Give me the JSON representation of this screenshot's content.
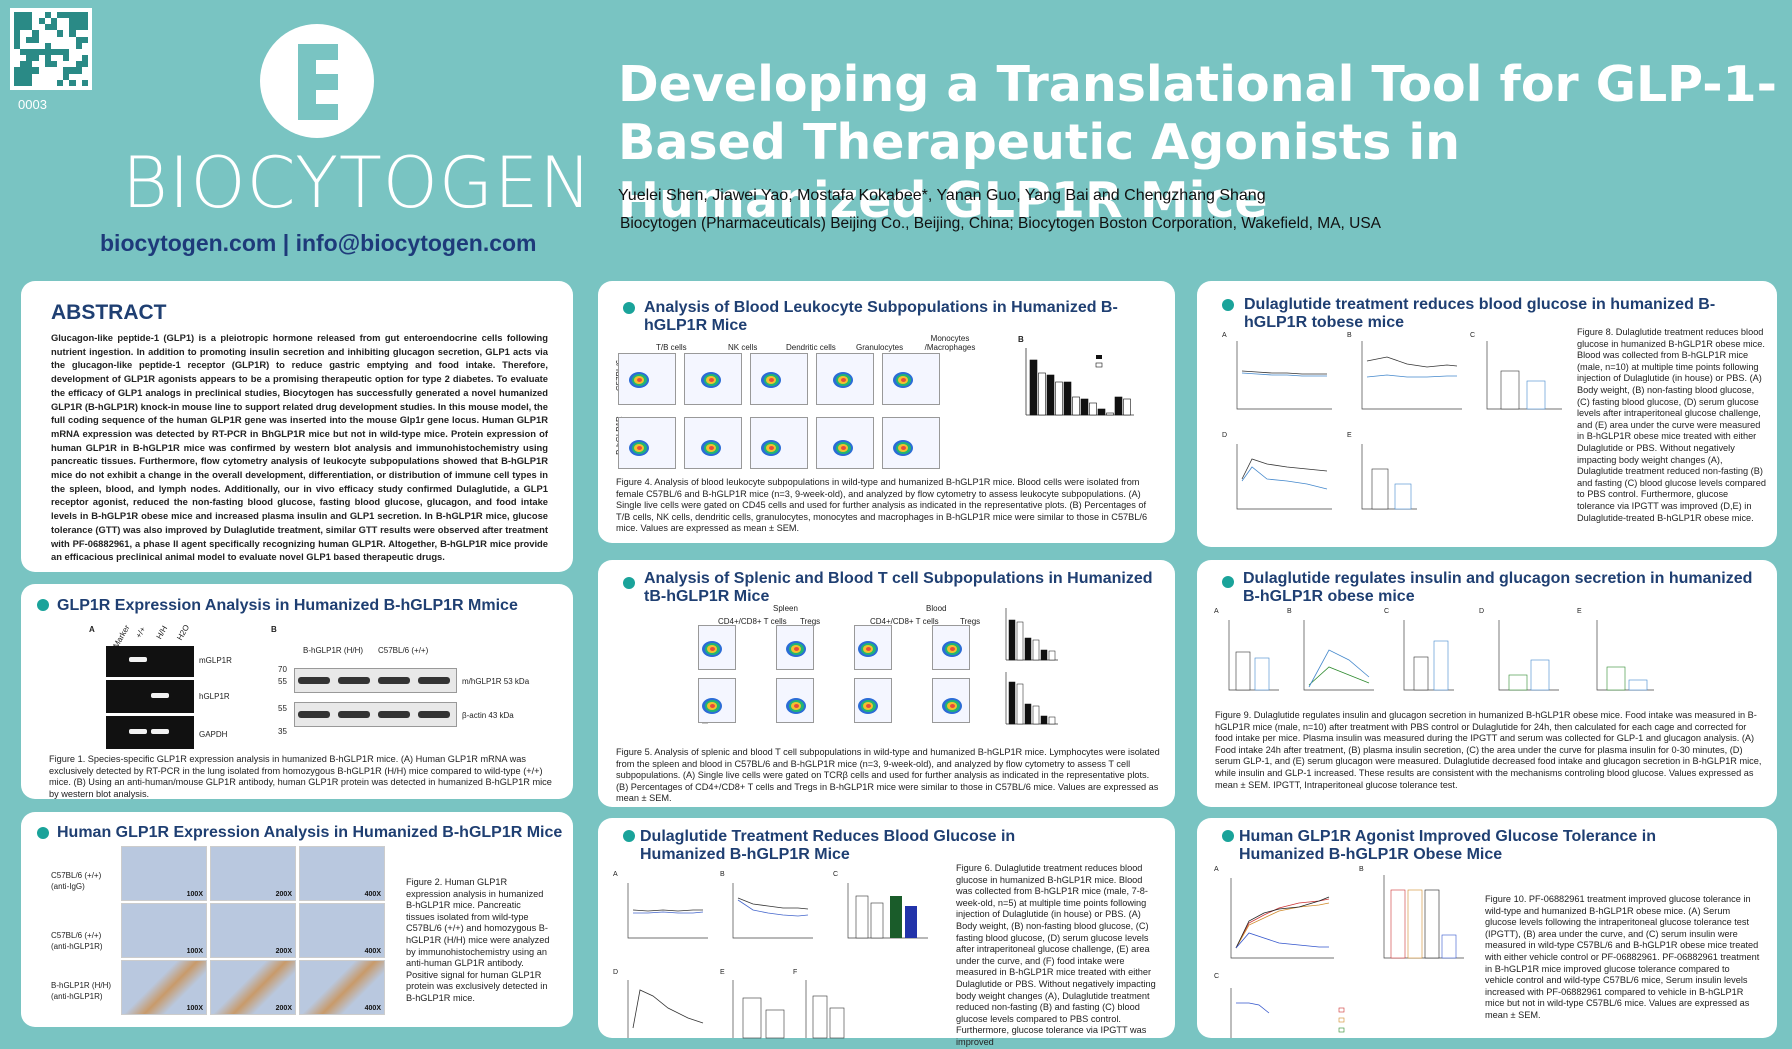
{
  "header": {
    "qr_id": "0003",
    "logo_text": "BIOCYTOGEN",
    "contact": "biocytogen.com  |  info@biocytogen.com",
    "title": "Developing a Translational Tool for GLP-1-Based Therapeutic Agonists in Humanized GLP1R Mice",
    "authors": "Yuelei Shen, Jiawei Yao, Mostafa Kokabee*, Yanan Guo, Yang Bai and Chengzhang Shang",
    "affiliation": "Biocytogen (Pharmaceuticals) Beijing Co., Beijing, China; Biocytogen Boston Corporation, Wakefield, MA, USA"
  },
  "colors": {
    "background": "#79c4c2",
    "title": "#ffffff",
    "heading": "#1f3f72",
    "bullet": "#1aa39a"
  },
  "abstract": {
    "heading": "ABSTRACT",
    "body": "Glucagon-like peptide-1 (GLP1) is a pleiotropic hormone released from gut enteroendocrine cells following nutrient ingestion. In addition to promoting insulin secretion and inhibiting glucagon secretion, GLP1 acts via the glucagon-like peptide-1 receptor (GLP1R) to reduce gastric emptying and food intake. Therefore, development of GLP1R agonists appears to be a promising therapeutic option for type 2 diabetes. To evaluate the efficacy of GLP1 analogs in preclinical studies, Biocytogen has successfully generated a novel humanized GLP1R (B-hGLP1R) knock-in mouse line to support related drug development studies. In this mouse model, the full coding sequence of the human GLP1R gene was inserted into the mouse Glp1r gene locus. Human GLP1R mRNA expression was detected by RT-PCR in BhGLP1R mice but not in wild-type mice. Protein expression of human GLP1R in B-hGLP1R mice was confirmed by western blot analysis and immunohistochemistry using pancreatic tissues. Furthermore, flow cytometry analysis of leukocyte subpopulations showed that B-hGLP1R mice do not exhibit a change in the overall development, differentiation, or distribution of immune cell types in the spleen, blood, and lymph nodes. Additionally, our in vivo efficacy study confirmed Dulaglutide, a GLP1 receptor agonist, reduced the non-fasting blood glucose, fasting blood glucose, glucagon, and food intake levels in B-hGLP1R obese mice and increased plasma insulin and GLP1 secretion. In B-hGLP1R mice, glucose tolerance (GTT) was also improved by Dulaglutide treatment, similar GTT results were observed after treatment with PF-06882961, a phase II agent specifically recognizing human GLP1R. Altogether, B-hGLP1R mice provide an efficacious preclinical animal model to evaluate novel GLP1 based therapeutic drugs."
  },
  "panel_expr": {
    "title": "GLP1R Expression Analysis in Humanized B-hGLP1R Mmice",
    "gel_lanes": [
      "Marker",
      "+/+",
      "H/H",
      "H2O"
    ],
    "gel_rows": [
      "mGLP1R",
      "hGLP1R",
      "GAPDH"
    ],
    "wb_cols": [
      "B-hGLP1R (H/H)",
      "C57BL/6 (+/+)"
    ],
    "wb_rows": [
      "m/hGLP1R   53 kDa",
      "β-actin   43 kDa"
    ],
    "wb_markers": [
      "70",
      "55",
      "55",
      "35"
    ],
    "caption": "Figure 1. Species-specific GLP1R expression analysis in humanized B-hGLP1R mice. (A) Human GLP1R mRNA was exclusively detected by RT-PCR in the lung isolated from homozygous B-hGLP1R (H/H) mice compared to wild-type (+/+) mice. (B) Using an anti-human/mouse GLP1R antibody, human GLP1R protein was detected in humanized B-hGLP1R mice by western blot analysis."
  },
  "panel_ihc": {
    "title": "Human GLP1R Expression Analysis in Humanized B-hGLP1R Mice",
    "rows": [
      "C57BL/6 (+/+) (anti-IgG)",
      "C57BL/6 (+/+) (anti-hGLP1R)",
      "B-hGLP1R (H/H) (anti-hGLP1R)"
    ],
    "mags": [
      "100X",
      "200X",
      "400X"
    ],
    "caption": "Figure 2. Human GLP1R expression analysis in humanized B-hGLP1R mice. Pancreatic tissues isolated from wild-type C57BL/6 (+/+) and homozygous B-hGLP1R (H/H) mice were analyzed by immunohistochemistry using an anti-human GLP1R antibody. Positive signal for human GLP1R protein was exclusively detected in B-hGLP1R mice."
  },
  "panel_leuko": {
    "title": "Analysis of Blood Leukocyte Subpopulations in Humanized B-hGLP1R Mice",
    "gates": [
      "T/B cells",
      "NK cells",
      "Dendritic cells",
      "Granulocytes",
      "Monocytes /Macrophages"
    ],
    "strains": [
      "C57BL/6",
      "B-hGLP1R"
    ],
    "caption": "Figure 4. Analysis of blood leukocyte subpopulations in wild-type and humanized B-hGLP1R mice. Blood cells were isolated from female C57BL/6 and B-hGLP1R mice (n=3, 9-week-old), and analyzed by flow cytometry to assess leukocyte subpopulations. (A) Single live cells were gated on CD45 cells and used for further analysis as indicated in the representative plots. (B) Percentages of T/B cells, NK cells, dendritic cells, granulocytes, monocytes and macrophages in B-hGLP1R mice were similar to those in C57BL/6 mice. Values are expressed as mean ± SEM."
  },
  "panel_spleen": {
    "title": "Analysis of Splenic and Blood T cell Subpopulations in Humanized tB-hGLP1R Mice",
    "tissues": [
      "Spleen",
      "Blood"
    ],
    "gates": [
      "CD4+/CD8+ T cells",
      "Tregs"
    ],
    "caption": "Figure 5. Analysis of splenic and blood T cell subpopulations in wild-type and humanized B-hGLP1R mice. Lymphocytes were isolated from the spleen and blood in C57BL/6 and B-hGLP1R mice (n=3, 9-week-old), and analyzed by flow cytometry to assess T cell subpopulations. (A) Single live cells were gated on TCRβ cells and used for further analysis as indicated in the representative plots. (B) Percentages of CD4+/CD8+ T cells and Tregs in B-hGLP1R mice were similar to those in C57BL/6 mice. Values are expressed as mean ± SEM."
  },
  "panel_dula1": {
    "title": "Dulaglutide Treatment Reduces Blood Glucose in Humanized B-hGLP1R Mice",
    "caption": "Figure 6. Dulaglutide treatment reduces blood glucose in humanized B-hGLP1R mice. Blood was collected from B-hGLP1R mice (male, 7-8-week-old, n=5) at multiple time points following injection of Dulaglutide (in house) or PBS. (A) Body weight, (B) non-fasting blood glucose, (C) fasting blood glucose, (D) serum glucose levels after intraperitoneal glucose challenge, (E) area under the curve, and (F) food intake were measured in B-hGLP1R mice treated with either Dulaglutide or PBS. Without negatively impacting body weight changes (A), Dulaglutide treatment reduced non-fasting (B) and fasting (C) blood glucose levels compared to PBS control. Furthermore, glucose tolerance via IPGTT was improved"
  },
  "panel_obese": {
    "title": "Dulaglutide treatment reduces blood glucose in humanized B-hGLP1R tobese mice",
    "caption": "Figure 8. Dulaglutide treatment reduces blood glucose in humanized B-hGLP1R obese mice. Blood was collected from B-hGLP1R mice (male, n=10) at multiple time points following injection of Dulaglutide (in house) or PBS. (A) Body weight, (B) non-fasting blood glucose, (C) fasting blood glucose, (D) serum glucose levels after intraperitoneal glucose challenge, and (E) area under the curve were measured in B-hGLP1R obese mice treated with either Dulaglutide or PBS. Without negatively impacting body weight changes (A), Dulaglutide treatment reduced non-fasting (B) and fasting (C) blood glucose levels compared to PBS control. Furthermore, glucose tolerance via IPGTT was improved (D,E) in Dulaglutide-treated B-hGLP1R obese mice."
  },
  "panel_insulin": {
    "title": "Dulaglutide regulates insulin and glucagon secretion in humanized B-hGLP1R obese mice",
    "caption": "Figure 9. Dulaglutide regulates insulin and glucagon secretion in humanized B-hGLP1R obese mice. Food intake was measured in B-hGLP1R mice (male, n=10) after treatment with PBS control or Dulaglutide for 24h, then calculated for each cage and corrected for food intake per mice. Plasma insulin was measured during the IPGTT and serum was collected for GLP-1 and glucagon analysis. (A) Food intake 24h after treatment, (B) plasma insulin secretion, (C) the area under the curve for plasma insulin for 0-30 minutes, (D) serum GLP-1, and (E) serum glucagon were measured. Dulaglutide decreased food intake and glucagon secretion in B-hGLP1R mice, while insulin and GLP-1 increased. These results are consistent with the mechanisms controling blood glucose. Values expressed as mean ± SEM. IPGTT, Intraperitoneal glucose tolerance test."
  },
  "panel_agonist": {
    "title": "Human GLP1R Agonist Improved Glucose Tolerance in Humanized B-hGLP1R Obese Mice",
    "caption": "Figure 10. PF-06882961 treatment improved glucose tolerance in wild-type and humanized B-hGLP1R obese mice. (A) Serum glucose levels following the intraperitoneal glucose tolerance test (IPGTT), (B) area under the curve, and (C) serum insulin were measured in wild-type C57BL/6 and B-hGLP1R obese mice treated with either vehicle control or PF-06882961. PF-06882961 treatment in B-hGLP1R mice improved glucose tolerance compared to vehicle control and wild-type C57BL/6 mice, Serum insulin levels increased with PF-06882961 compared to vehicle in B-hGLP1R mice but not in wild-type C57BL/6 mice. Values are expressed as mean ± SEM."
  }
}
